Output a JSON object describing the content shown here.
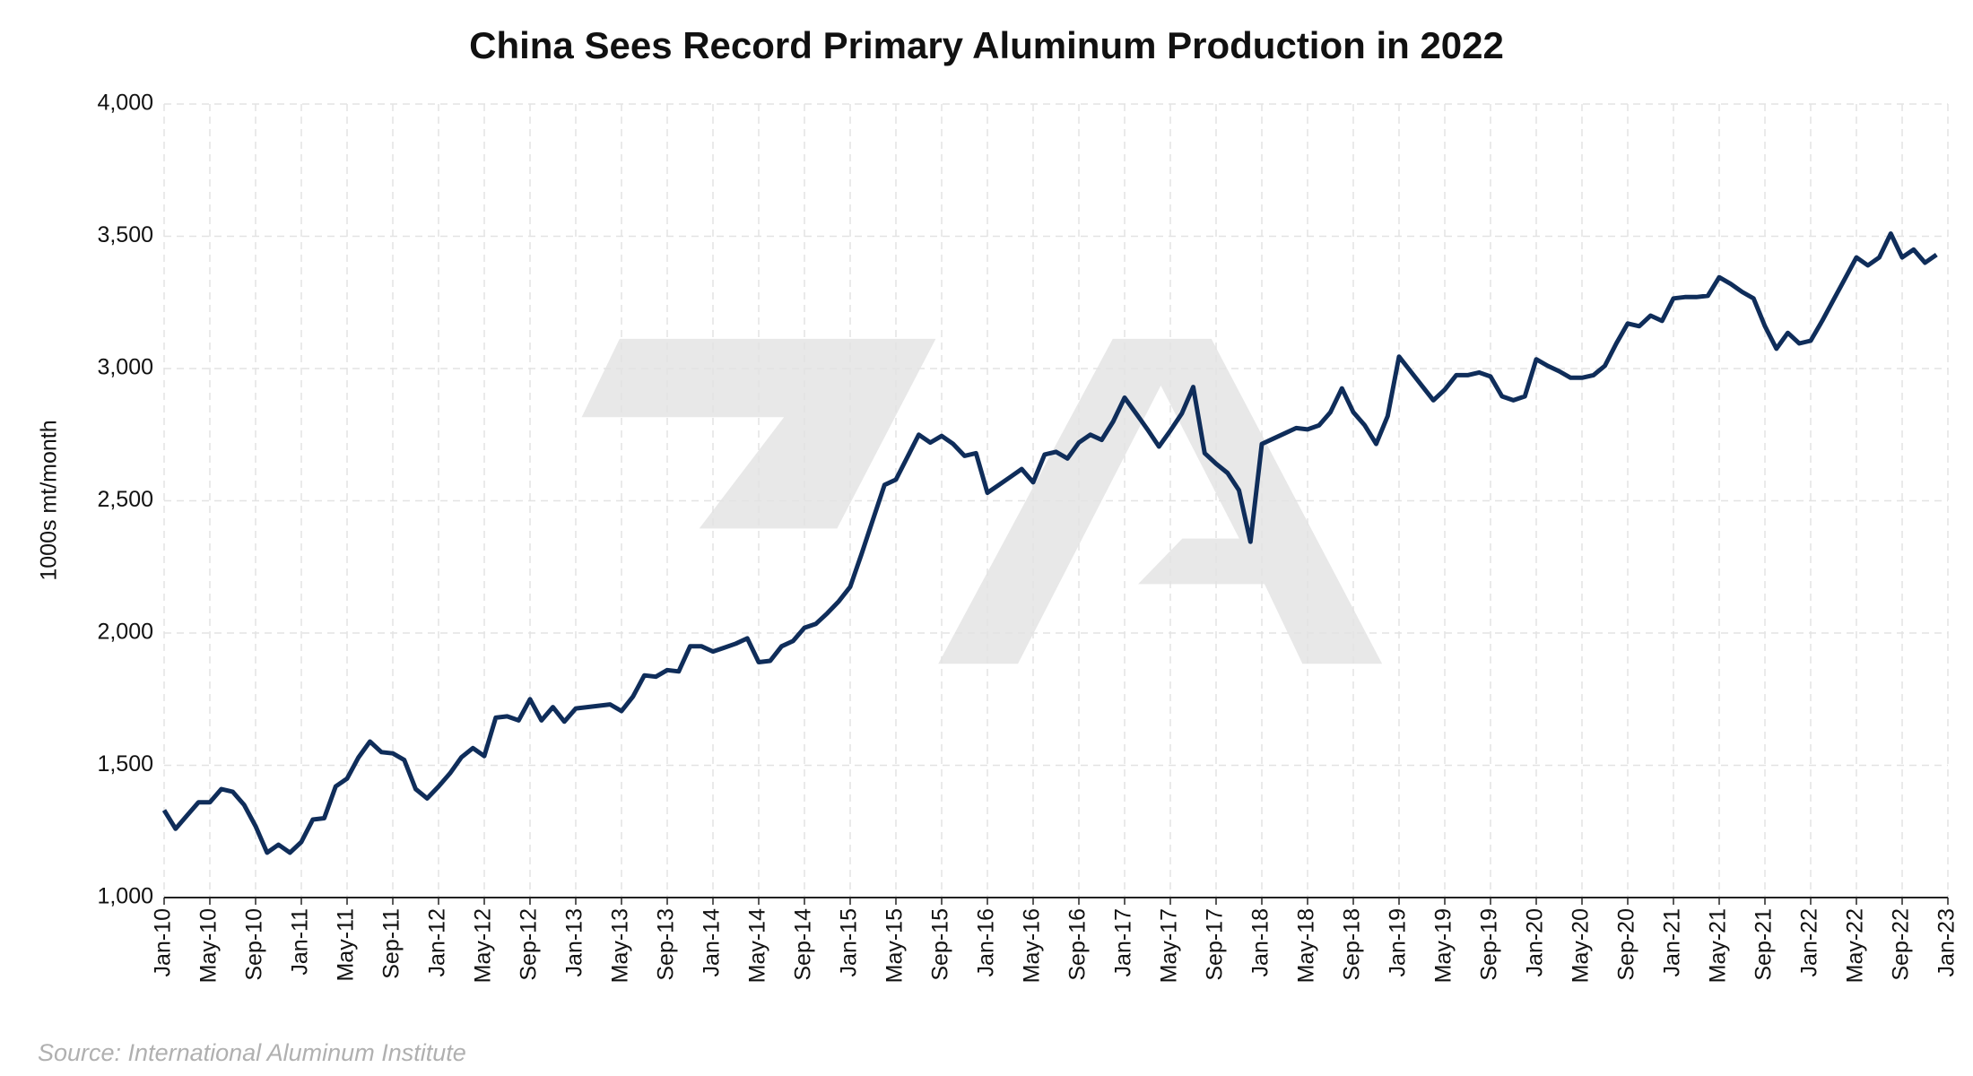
{
  "chart_data": {
    "type": "line",
    "title": "China Sees Record Primary Aluminum Production in 2022",
    "y_label": "1000s mt/month",
    "source": "Source: International Aluminum Institute",
    "grid": true,
    "categories": [
      "Jan-10",
      null,
      null,
      null,
      "May-10",
      null,
      null,
      null,
      "Sep-10",
      null,
      null,
      null,
      "Jan-11",
      null,
      null,
      null,
      "May-11",
      null,
      null,
      null,
      "Sep-11",
      null,
      null,
      null,
      "Jan-12",
      null,
      null,
      null,
      "May-12",
      null,
      null,
      null,
      "Sep-12",
      null,
      null,
      null,
      "Jan-13",
      null,
      null,
      null,
      "May-13",
      null,
      null,
      null,
      "Sep-13",
      null,
      null,
      null,
      "Jan-14",
      null,
      null,
      null,
      "May-14",
      null,
      null,
      null,
      "Sep-14",
      null,
      null,
      null,
      "Jan-15",
      null,
      null,
      null,
      "May-15",
      null,
      null,
      null,
      "Sep-15",
      null,
      null,
      null,
      "Jan-16",
      null,
      null,
      null,
      "May-16",
      null,
      null,
      null,
      "Sep-16",
      null,
      null,
      null,
      "Jan-17",
      null,
      null,
      null,
      "May-17",
      null,
      null,
      null,
      "Sep-17",
      null,
      null,
      null,
      "Jan-18",
      null,
      null,
      null,
      "May-18",
      null,
      null,
      null,
      "Sep-18",
      null,
      null,
      null,
      "Jan-19",
      null,
      null,
      null,
      "May-19",
      null,
      null,
      null,
      "Sep-19",
      null,
      null,
      null,
      "Jan-20",
      null,
      null,
      null,
      "May-20",
      null,
      null,
      null,
      "Sep-20",
      null,
      null,
      null,
      "Jan-21",
      null,
      null,
      null,
      "May-21",
      null,
      null,
      null,
      "Sep-21",
      null,
      null,
      null,
      "Jan-22",
      null,
      null,
      null,
      "May-22",
      null,
      null,
      null,
      "Sep-22",
      null,
      null,
      null,
      "Jan-23"
    ],
    "series": [
      {
        "name": "Primary aluminum production",
        "color": "#0f2d5a",
        "values": [
          1330,
          1260,
          1310,
          1360,
          1360,
          1410,
          1400,
          1350,
          1270,
          1170,
          1200,
          1170,
          1210,
          1295,
          1300,
          1420,
          1450,
          1530,
          1590,
          1550,
          1545,
          1520,
          1410,
          1375,
          1420,
          1470,
          1530,
          1565,
          1535,
          1680,
          1685,
          1670,
          1750,
          1670,
          1720,
          1665,
          1715,
          1720,
          1725,
          1730,
          1705,
          1760,
          1840,
          1835,
          1860,
          1855,
          1950,
          1950,
          1930,
          1945,
          1960,
          1980,
          1890,
          1895,
          1950,
          1970,
          2020,
          2035,
          2075,
          2120,
          2175,
          2300,
          2430,
          2560,
          2580,
          2665,
          2750,
          2720,
          2745,
          2715,
          2670,
          2680,
          2530,
          2560,
          2590,
          2620,
          2570,
          2675,
          2685,
          2660,
          2720,
          2750,
          2730,
          2800,
          2890,
          2830,
          2770,
          2705,
          2765,
          2830,
          2930,
          2680,
          2640,
          2605,
          2540,
          2345,
          2715,
          2735,
          2755,
          2775,
          2770,
          2785,
          2835,
          2925,
          2835,
          2785,
          2715,
          2820,
          3045,
          2990,
          2935,
          2880,
          2920,
          2975,
          2975,
          2985,
          2970,
          2895,
          2880,
          2895,
          3035,
          3010,
          2990,
          2965,
          2965,
          2975,
          3010,
          3095,
          3170,
          3160,
          3200,
          3180,
          3265,
          3270,
          3270,
          3275,
          3345,
          3320,
          3290,
          3265,
          3160,
          3075,
          3135,
          3095,
          3105,
          3180,
          3260,
          3340,
          3420,
          3390,
          3420,
          3510,
          3420,
          3450,
          3400,
          3430,
          null
        ]
      }
    ],
    "ylim": [
      1000,
      4000
    ],
    "yticks": [
      {
        "value": 1000,
        "label": "1,000"
      },
      {
        "value": 1500,
        "label": "1,500"
      },
      {
        "value": 2000,
        "label": "2,000"
      },
      {
        "value": 2500,
        "label": "2,500"
      },
      {
        "value": 3000,
        "label": "3,000"
      },
      {
        "value": 3500,
        "label": "3,500"
      },
      {
        "value": 4000,
        "label": "4,000"
      }
    ]
  }
}
